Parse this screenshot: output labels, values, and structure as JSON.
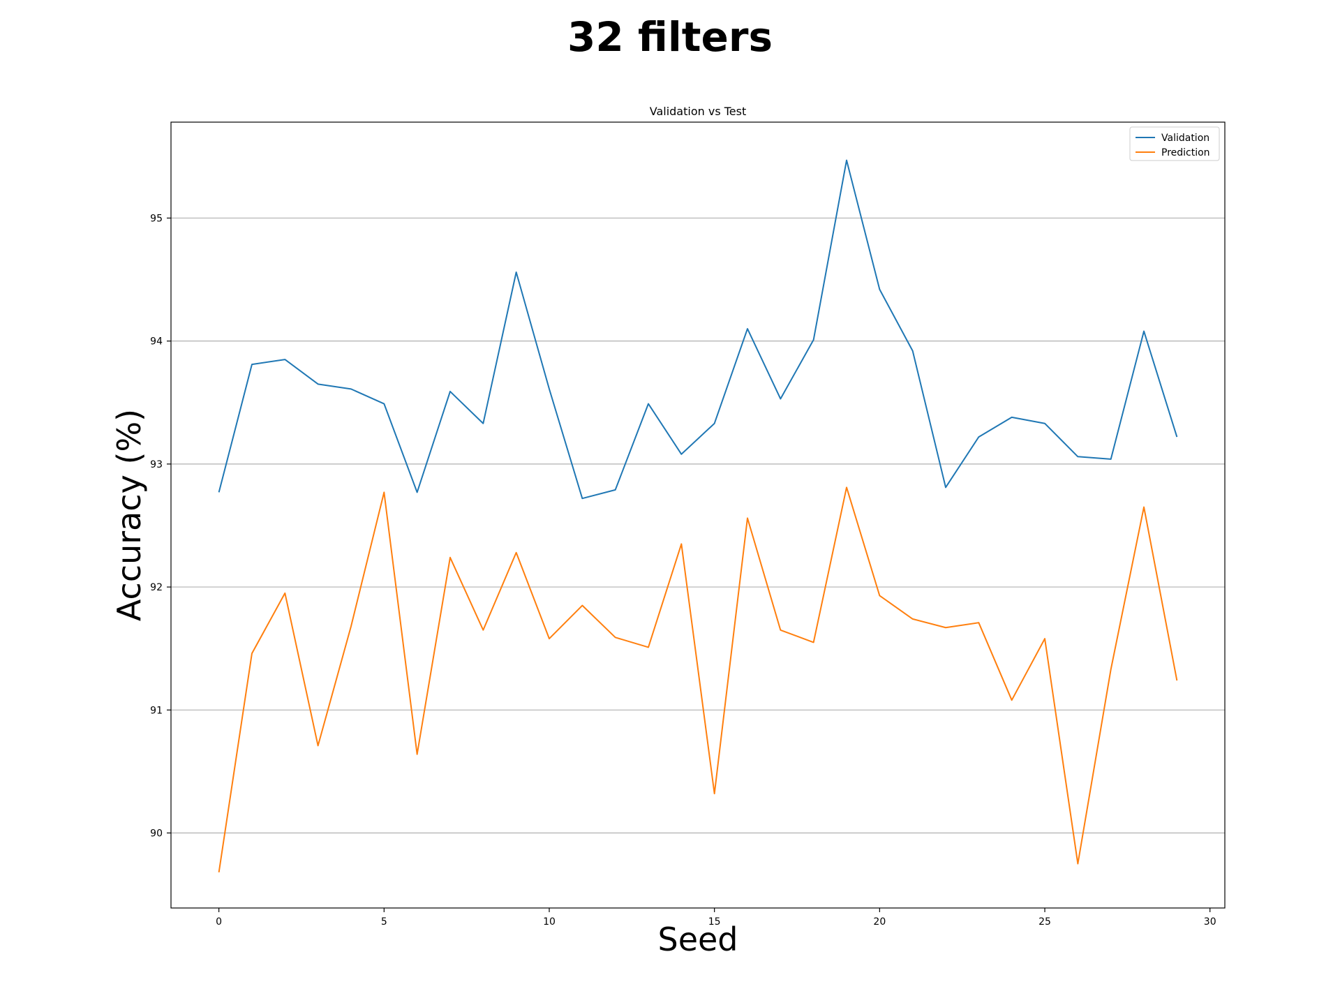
{
  "figure_title": "32 filters",
  "chart_data": {
    "type": "line",
    "title": "Validation vs Test",
    "xlabel": "Seed",
    "ylabel": "Accuracy (%)",
    "xlim": [
      -1.45,
      30.45
    ],
    "ylim": [
      89.39,
      95.78
    ],
    "xticks": [
      0,
      5,
      10,
      15,
      20,
      25,
      30
    ],
    "yticks": [
      90,
      91,
      92,
      93,
      94,
      95
    ],
    "grid": "y",
    "legend_position": "top-right",
    "x": [
      0,
      1,
      2,
      3,
      4,
      5,
      6,
      7,
      8,
      9,
      10,
      11,
      12,
      13,
      14,
      15,
      16,
      17,
      18,
      19,
      20,
      21,
      22,
      23,
      24,
      25,
      26,
      27,
      28,
      29
    ],
    "series": [
      {
        "name": "Validation",
        "color": "#1f77b4",
        "values": [
          92.77,
          93.81,
          93.85,
          93.65,
          93.61,
          93.49,
          92.77,
          93.59,
          93.33,
          94.56,
          93.61,
          92.72,
          92.79,
          93.49,
          93.08,
          93.33,
          94.1,
          93.53,
          94.01,
          95.47,
          94.42,
          93.92,
          92.81,
          93.22,
          93.38,
          93.33,
          93.06,
          93.04,
          94.08,
          93.22
        ]
      },
      {
        "name": "Prediction",
        "color": "#ff7f0e",
        "values": [
          89.68,
          91.46,
          91.95,
          90.71,
          91.68,
          92.77,
          90.64,
          92.24,
          91.65,
          92.28,
          91.58,
          91.85,
          91.59,
          91.51,
          92.35,
          90.32,
          92.56,
          91.65,
          91.55,
          92.81,
          91.93,
          91.74,
          91.67,
          91.71,
          91.08,
          91.58,
          89.75,
          91.33,
          92.65,
          91.24
        ]
      }
    ]
  }
}
